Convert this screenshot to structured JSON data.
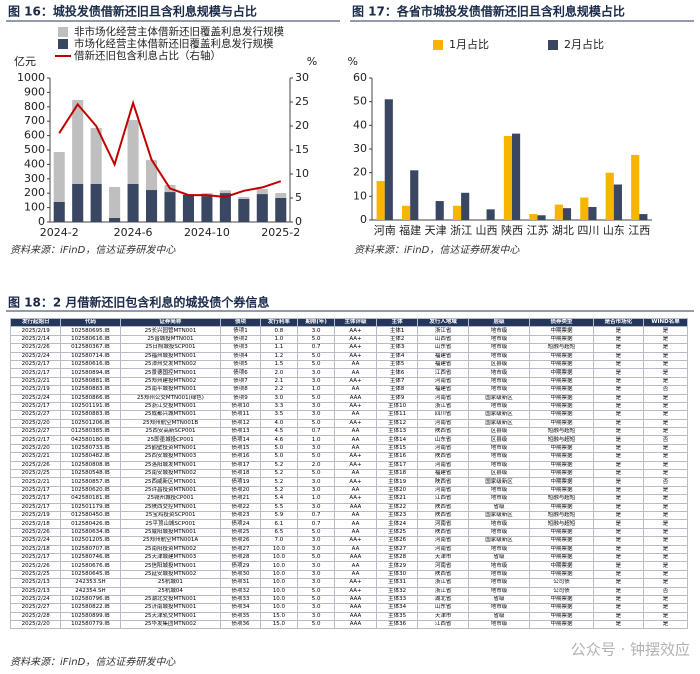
{
  "chart_data": [
    {
      "type": "bar",
      "title": "图 16：城投发债借新还旧且含利息规模与占比",
      "stacked": true,
      "ylabel": "亿元",
      "y2label": "%",
      "categories": [
        "2024-2",
        null,
        null,
        null,
        "2024-6",
        null,
        null,
        null,
        "2024-10",
        null,
        null,
        null,
        "2025-2"
      ],
      "series": [
        {
          "name": "非市场化经营主体借新还旧覆盖利息发行规模",
          "color": "#bfbfbf",
          "values": [
            347,
            583,
            389,
            215,
            444,
            208,
            49,
            7,
            21,
            19,
            14,
            35,
            34
          ]
        },
        {
          "name": "市场化经营主体借新还旧覆盖利息发行规模",
          "color": "#3a4763",
          "values": [
            139,
            264,
            264,
            28,
            264,
            222,
            208,
            188,
            180,
            201,
            160,
            194,
            167
          ]
        },
        {
          "name": "借新还旧包含利息占比（右轴）",
          "type": "line",
          "axis": "y2",
          "color": "#c00000",
          "values": [
            18.5,
            24.5,
            20.0,
            12.0,
            24.8,
            13.0,
            7.0,
            5.6,
            5.6,
            5.2,
            6.5,
            7.2,
            8.5
          ]
        }
      ],
      "ylim": [
        0,
        1000
      ],
      "yticks": [
        0,
        100,
        200,
        300,
        400,
        500,
        600,
        700,
        800,
        900,
        1000
      ],
      "y2lim": [
        0,
        30
      ],
      "y2ticks": [
        0,
        5,
        10,
        15,
        20,
        25,
        30
      ],
      "grid": false,
      "legend": "top-left",
      "source": "资料来源：iFinD，信达证券研发中心"
    },
    {
      "type": "bar",
      "title": "图 17：各省市城投发债借新还旧且含利息规模占比",
      "stacked": false,
      "ylabel": "%",
      "categories": [
        "河南",
        "福建",
        "天津",
        "浙江",
        "山西",
        "陕西",
        "江苏",
        "湖北",
        "四川",
        "山东",
        "江西"
      ],
      "series": [
        {
          "name": "1月占比",
          "color": "#f7b500",
          "values": [
            16.5,
            6,
            0,
            6,
            0,
            35.5,
            2.5,
            6.5,
            9.5,
            20,
            27.5
          ]
        },
        {
          "name": "2月占比",
          "color": "#3a4763",
          "values": [
            51,
            21,
            8,
            11.5,
            4.5,
            36.5,
            2,
            5,
            5.5,
            15,
            2.5
          ]
        }
      ],
      "ylim": [
        0,
        60
      ],
      "yticks": [
        0,
        10,
        20,
        30,
        40,
        50,
        60
      ],
      "grid": false,
      "legend": "top",
      "source": "资料来源：iFinD，信达证券研发中心"
    }
  ],
  "table": {
    "title": "图 18：2 月借新还旧包含利息的城投债个券信息",
    "header": [
      "发行起始日",
      "代码",
      "证券简称",
      "债项",
      "发行利率",
      "期限(年)",
      "主体评级",
      "主体",
      "发行人地域",
      "层级",
      "债券类型",
      "是否市场化",
      "WIND名单"
    ],
    "rows": [
      [
        "2025/2/19",
        "102580695.IB",
        "25长兴园管MTN001",
        "债项1",
        "0.8",
        "3.0",
        "AA+",
        "主体1",
        "浙江省",
        "地市级",
        "中期票据",
        "是",
        "是"
      ],
      [
        "2025/2/14",
        "102580616.IB",
        "25晋城投MTN001",
        "债项2",
        "1.0",
        "5.0",
        "AA+",
        "主体2",
        "山西省",
        "地市级",
        "中期票据",
        "是",
        "是"
      ],
      [
        "2025/2/26",
        "012580367.IB",
        "25日照城投SCP001",
        "债项3",
        "1.1",
        "0.7",
        "AA+",
        "主体3",
        "山东省",
        "地市级",
        "短融与超短",
        "是",
        "是"
      ],
      [
        "2025/2/24",
        "102580714.IB",
        "25福州城投MTN001",
        "债项4",
        "1.2",
        "5.0",
        "AA+",
        "主体4",
        "福建省",
        "地市级",
        "中期票据",
        "是",
        "是"
      ],
      [
        "2025/2/17",
        "102580616.IB",
        "25漳州交发MTN002",
        "债项5",
        "1.5",
        "5.0",
        "AA",
        "主体5",
        "福建省",
        "区县级",
        "中期票据",
        "是",
        "是"
      ],
      [
        "2025/2/17",
        "102580894.IB",
        "25景德国控MTN001",
        "债项6",
        "2.0",
        "3.0",
        "AA",
        "主体6",
        "江西省",
        "地市级",
        "中期票据",
        "是",
        "是"
      ],
      [
        "2025/2/21",
        "102580881.IB",
        "25郑州建投MTN002",
        "债项7",
        "2.1",
        "3.0",
        "AA+",
        "主体7",
        "河南省",
        "地市级",
        "中期票据",
        "是",
        "是"
      ],
      [
        "2025/2/19",
        "102580883.IB",
        "25南平城投MTN001",
        "债项8",
        "2.2",
        "1.0",
        "AA",
        "主体8",
        "福建省",
        "地市级",
        "中期票据",
        "是",
        "否"
      ],
      [
        "2025/2/24",
        "102580866.IB",
        "25郑州公交MTN001(绿色)",
        "债项9",
        "3.0",
        "5.0",
        "AAA",
        "主体9",
        "河南省",
        "国家级新区",
        "中期票据",
        "是",
        "是"
      ],
      [
        "2025/2/17",
        "102501191.IB",
        "25浙江交投MTN001",
        "债项10",
        "3.3",
        "3.0",
        "AA+",
        "主体10",
        "浙江省",
        "地市级",
        "中期票据",
        "是",
        "是"
      ],
      [
        "2025/2/27",
        "102580883.IB",
        "25成都兴城MTN001",
        "债项11",
        "3.5",
        "3.0",
        "AA",
        "主体11",
        "四川省",
        "国家级新区",
        "中期票据",
        "是",
        "是"
      ],
      [
        "2025/2/20",
        "102501206.IB",
        "25郑州航空MTN001B",
        "债项12",
        "4.0",
        "5.0",
        "AA+",
        "主体12",
        "河南省",
        "国家级新区",
        "中期票据",
        "是",
        "是"
      ],
      [
        "2025/2/27",
        "012580385.IB",
        "25西安高新SCP001",
        "债项13",
        "4.5",
        "0.7",
        "AA",
        "主体13",
        "陕西省",
        "区县级",
        "短融与超短",
        "是",
        "是"
      ],
      [
        "2025/2/17",
        "042580180.IB",
        "25即墨城投CP001",
        "债项14",
        "4.6",
        "1.0",
        "AA",
        "主体14",
        "山东省",
        "区县级",
        "短融与超短",
        "是",
        "否"
      ],
      [
        "2025/2/20",
        "102580733.IB",
        "25鹤壁投资MTN001",
        "债项15",
        "5.0",
        "3.0",
        "AA",
        "主体15",
        "河南省",
        "地市级",
        "中期票据",
        "是",
        "是"
      ],
      [
        "2025/2/21",
        "102580482.IB",
        "25西安城投MTN003",
        "债项16",
        "5.0",
        "5.0",
        "AA+",
        "主体16",
        "陕西省",
        "地市级",
        "中期票据",
        "是",
        "是"
      ],
      [
        "2025/2/26",
        "102580808.IB",
        "25洛阳城发MTN001",
        "债项17",
        "5.2",
        "2.0",
        "AA+",
        "主体17",
        "河南省",
        "地市级",
        "中期票据",
        "是",
        "是"
      ],
      [
        "2025/2/25",
        "102580548.IB",
        "25南安城投MTN002",
        "债项18",
        "5.2",
        "5.0",
        "AA",
        "主体18",
        "福建省",
        "区县级",
        "中期票据",
        "是",
        "是"
      ],
      [
        "2025/2/21",
        "102580857.IB",
        "25西咸新区MTN001",
        "债项19",
        "5.2",
        "3.0",
        "AA+",
        "主体19",
        "陕西省",
        "国家级新区",
        "中期票据",
        "是",
        "否"
      ],
      [
        "2025/2/17",
        "102580620.IB",
        "25许昌投资MTN001",
        "债项20",
        "5.2",
        "3.0",
        "AA",
        "主体20",
        "河南省",
        "地市级",
        "中期票据",
        "是",
        "是"
      ],
      [
        "2025/2/17",
        "042580181.IB",
        "25赣州城投CP001",
        "债项21",
        "5.4",
        "1.0",
        "AA+",
        "主体21",
        "江西省",
        "地市级",
        "短融与超短",
        "是",
        "是"
      ],
      [
        "2025/2/17",
        "102501179.IB",
        "25陕西交控MTN001",
        "债项22",
        "5.5",
        "3.0",
        "AAA",
        "主体22",
        "陕西省",
        "省级",
        "中期票据",
        "是",
        "是"
      ],
      [
        "2025/2/19",
        "012580450.IB",
        "25宝鸡投资SCP001",
        "债项23",
        "5.9",
        "0.7",
        "AA",
        "主体23",
        "陕西省",
        "国家级新区",
        "短融与超短",
        "是",
        "是"
      ],
      [
        "2025/2/18",
        "012580426.IB",
        "25平顶山城SCP001",
        "债项24",
        "6.1",
        "0.7",
        "AA",
        "主体24",
        "河南省",
        "地市级",
        "短融与超短",
        "是",
        "是"
      ],
      [
        "2025/2/26",
        "102580634.IB",
        "25咸阳城投MTN001",
        "债项25",
        "6.5",
        "5.0",
        "AA",
        "主体25",
        "陕西省",
        "地市级",
        "中期票据",
        "是",
        "是"
      ],
      [
        "2025/2/24",
        "102501205.IB",
        "25郑州航空MTN001A",
        "债项26",
        "7.0",
        "3.0",
        "AA+",
        "主体26",
        "河南省",
        "国家级新区",
        "中期票据",
        "是",
        "是"
      ],
      [
        "2025/2/18",
        "102580707.IB",
        "25南阳投资MTN002",
        "债项27",
        "10.0",
        "3.0",
        "AA",
        "主体27",
        "河南省",
        "地市级",
        "中期票据",
        "是",
        "是"
      ],
      [
        "2025/2/17",
        "102580746.IB",
        "25天津城建MTN003",
        "债项28",
        "10.0",
        "5.0",
        "AAA",
        "主体28",
        "天津市",
        "省级",
        "中期票据",
        "是",
        "是"
      ],
      [
        "2025/2/26",
        "102580676.IB",
        "25信阳城投MTN001",
        "债项29",
        "10.0",
        "3.0",
        "AA",
        "主体29",
        "河南省",
        "地市级",
        "中期票据",
        "是",
        "是"
      ],
      [
        "2025/2/25",
        "102580645.IB",
        "25延安城投MTN002",
        "债项30",
        "10.0",
        "3.0",
        "AA",
        "主体30",
        "陕西省",
        "地市级",
        "中期票据",
        "是",
        "是"
      ],
      [
        "2025/2/13",
        "242353.SH",
        "25杭城01",
        "债项31",
        "10.0",
        "3.0",
        "AA+",
        "主体31",
        "浙江省",
        "地市级",
        "公司债",
        "是",
        "是"
      ],
      [
        "2025/2/13",
        "242354.SH",
        "25杭城04",
        "债项32",
        "10.0",
        "5.0",
        "AA+",
        "主体32",
        "浙江省",
        "地市级",
        "公司债",
        "是",
        "否"
      ],
      [
        "2025/2/24",
        "102580796.IB",
        "25湖北交投MTN001",
        "债项33",
        "10.0",
        "5.0",
        "AAA",
        "主体33",
        "湖北省",
        "省级",
        "中期票据",
        "是",
        "是"
      ],
      [
        "2025/2/27",
        "102580822.IB",
        "25济南城投MTN001",
        "债项34",
        "10.0",
        "3.0",
        "AAA",
        "主体34",
        "山东省",
        "地市级",
        "中期票据",
        "是",
        "是"
      ],
      [
        "2025/2/28",
        "102580899.IB",
        "25天津轨交MTN001",
        "债项35",
        "15.0",
        "3.0",
        "AAA",
        "主体35",
        "天津市",
        "省级",
        "中期票据",
        "是",
        "是"
      ],
      [
        "2025/2/20",
        "102580779.IB",
        "25华发集团MTN002",
        "债项36",
        "15.0",
        "5.0",
        "AAA",
        "主体36",
        "江西省",
        "地市级",
        "中期票据",
        "是",
        "是"
      ]
    ],
    "source": "资料来源：iFinD，信达证券研发中心"
  },
  "watermark": "公众号 · 钟摆效应"
}
